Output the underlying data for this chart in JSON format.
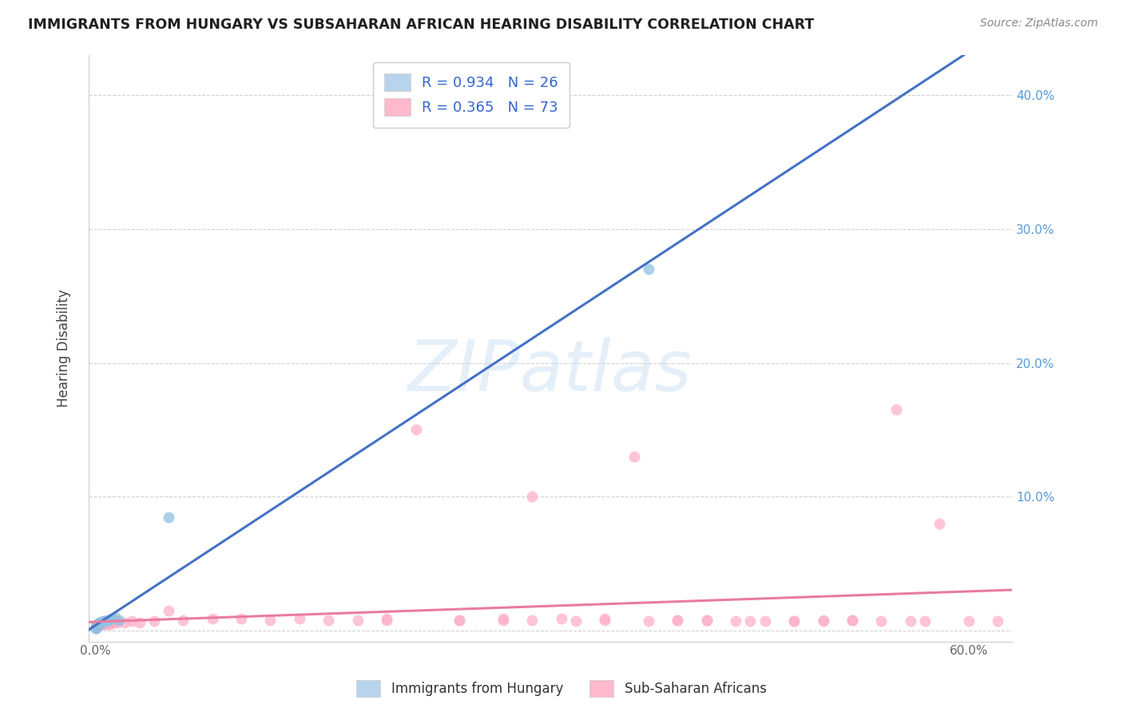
{
  "title": "IMMIGRANTS FROM HUNGARY VS SUBSAHARAN AFRICAN HEARING DISABILITY CORRELATION CHART",
  "source": "Source: ZipAtlas.com",
  "ylabel": "Hearing Disability",
  "watermark": "ZIPatlas",
  "legend_r1": "R = 0.934",
  "legend_n1": "N = 26",
  "legend_r2": "R = 0.365",
  "legend_n2": "N = 73",
  "series1_label": "Immigrants from Hungary",
  "series2_label": "Sub-Saharan Africans",
  "blue_scatter_color": "#92C0E0",
  "pink_scatter_color": "#FFB0C8",
  "blue_line_color": "#4472C4",
  "pink_line_color": "#E87CA0",
  "right_axis_color": "#5B9BD5",
  "grid_color": "#CCCCCC",
  "title_color": "#1F1F1F",
  "label_color": "#666666",
  "xlim_min": -0.005,
  "xlim_max": 0.63,
  "ylim_min": -0.008,
  "ylim_max": 0.43,
  "x_ticks": [
    0.0,
    0.1,
    0.2,
    0.3,
    0.4,
    0.5,
    0.6
  ],
  "x_tick_labels": [
    "0.0%",
    "",
    "",
    "",
    "",
    "",
    "60.0%"
  ],
  "y_ticks_right": [
    0.0,
    0.1,
    0.2,
    0.3,
    0.4
  ],
  "y_tick_labels_right": [
    "",
    "10.0%",
    "20.0%",
    "30.0%",
    "40.0%"
  ],
  "hungary_x": [
    0.0002,
    0.0003,
    0.0004,
    0.0005,
    0.0006,
    0.0007,
    0.0008,
    0.001,
    0.001,
    0.0012,
    0.0015,
    0.002,
    0.002,
    0.003,
    0.003,
    0.004,
    0.005,
    0.006,
    0.007,
    0.008,
    0.009,
    0.011,
    0.013,
    0.016,
    0.05,
    0.38
  ],
  "hungary_y": [
    0.002,
    0.002,
    0.003,
    0.003,
    0.003,
    0.003,
    0.004,
    0.004,
    0.005,
    0.004,
    0.005,
    0.005,
    0.006,
    0.005,
    0.006,
    0.006,
    0.007,
    0.007,
    0.007,
    0.008,
    0.008,
    0.009,
    0.01,
    0.008,
    0.085,
    0.27
  ],
  "ss_x": [
    0.0001,
    0.0002,
    0.0003,
    0.0004,
    0.0005,
    0.0006,
    0.0008,
    0.001,
    0.001,
    0.0012,
    0.0015,
    0.002,
    0.002,
    0.003,
    0.003,
    0.004,
    0.004,
    0.005,
    0.005,
    0.006,
    0.007,
    0.008,
    0.009,
    0.01,
    0.012,
    0.015,
    0.02,
    0.025,
    0.03,
    0.04,
    0.05,
    0.06,
    0.08,
    0.1,
    0.12,
    0.14,
    0.16,
    0.18,
    0.2,
    0.22,
    0.25,
    0.28,
    0.3,
    0.32,
    0.35,
    0.37,
    0.4,
    0.42,
    0.44,
    0.46,
    0.48,
    0.5,
    0.52,
    0.54,
    0.56,
    0.58,
    0.6,
    0.62,
    0.3,
    0.25,
    0.2,
    0.35,
    0.4,
    0.45,
    0.5,
    0.55,
    0.38,
    0.28,
    0.33,
    0.42,
    0.48,
    0.52,
    0.57
  ],
  "ss_y": [
    0.002,
    0.003,
    0.003,
    0.003,
    0.004,
    0.004,
    0.003,
    0.004,
    0.005,
    0.004,
    0.004,
    0.005,
    0.005,
    0.004,
    0.005,
    0.005,
    0.006,
    0.005,
    0.006,
    0.005,
    0.005,
    0.005,
    0.006,
    0.005,
    0.006,
    0.006,
    0.006,
    0.007,
    0.006,
    0.007,
    0.015,
    0.008,
    0.009,
    0.009,
    0.008,
    0.009,
    0.008,
    0.008,
    0.008,
    0.15,
    0.008,
    0.009,
    0.1,
    0.009,
    0.009,
    0.13,
    0.008,
    0.008,
    0.007,
    0.007,
    0.007,
    0.008,
    0.008,
    0.007,
    0.007,
    0.08,
    0.007,
    0.007,
    0.008,
    0.008,
    0.009,
    0.008,
    0.008,
    0.007,
    0.007,
    0.165,
    0.007,
    0.008,
    0.007,
    0.008,
    0.007,
    0.008,
    0.007
  ]
}
